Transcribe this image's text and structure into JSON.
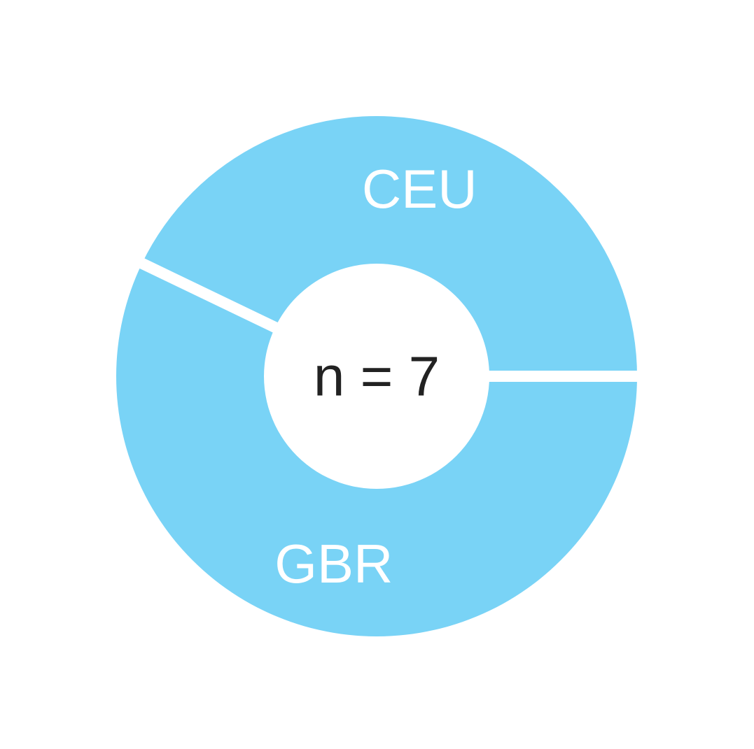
{
  "chart_data": {
    "type": "pie",
    "variant": "donut",
    "title": "",
    "center_label": "n = 7",
    "slices": [
      {
        "label": "CEU",
        "value": 3,
        "color": "#79d3f6"
      },
      {
        "label": "GBR",
        "value": 4,
        "color": "#79d3f6"
      }
    ],
    "slice_border_color": "#ffffff",
    "background": "#ffffff",
    "legend": "none"
  }
}
